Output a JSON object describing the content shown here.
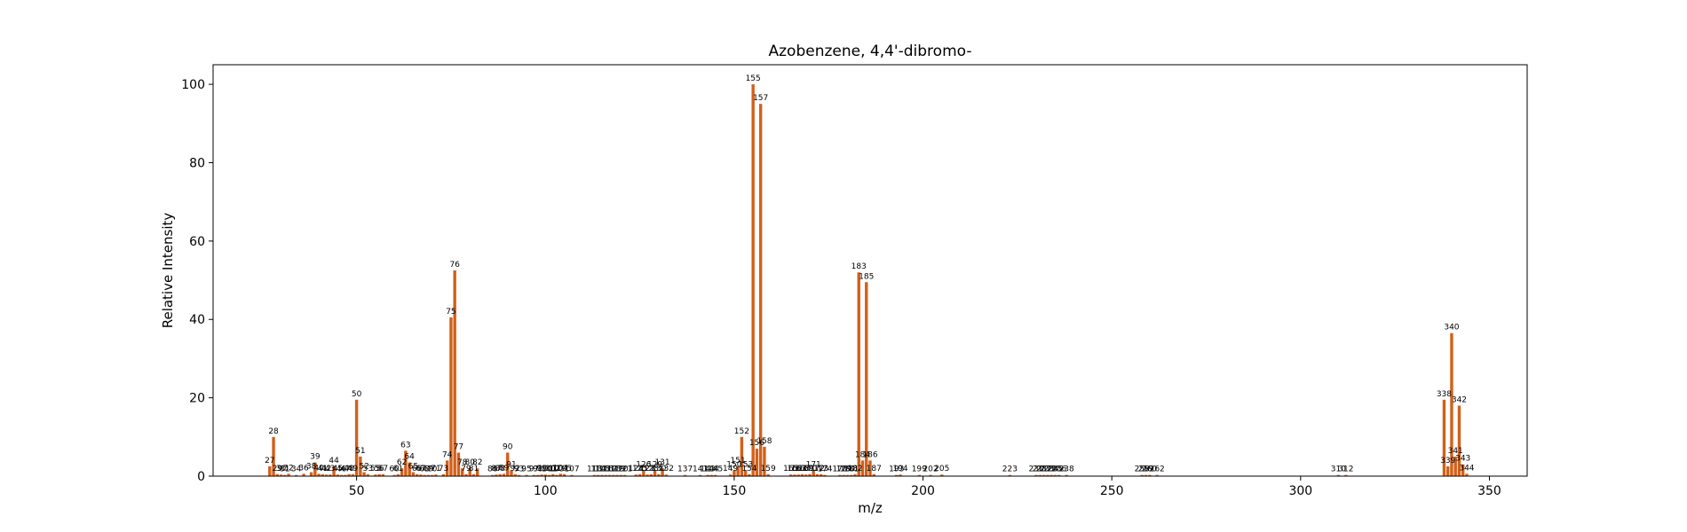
{
  "chart_data": {
    "type": "bar",
    "title": "Azobenzene, 4,4'-dibromo-",
    "xlabel": "m/z",
    "ylabel": "Relative Intensity",
    "xlim": [
      12,
      360
    ],
    "ylim": [
      0,
      105
    ],
    "xticks": [
      50,
      100,
      150,
      200,
      250,
      300,
      350
    ],
    "yticks": [
      0,
      20,
      40,
      60,
      80,
      100
    ],
    "bar_color": "#d2601a",
    "grid": false,
    "points": [
      {
        "x": 27,
        "y": 2.5
      },
      {
        "x": 28,
        "y": 10
      },
      {
        "x": 29,
        "y": 0.5
      },
      {
        "x": 30,
        "y": 0.4
      },
      {
        "x": 31,
        "y": 0.3
      },
      {
        "x": 32,
        "y": 0.6
      },
      {
        "x": 34,
        "y": 0.3
      },
      {
        "x": 36,
        "y": 0.6
      },
      {
        "x": 38,
        "y": 1.0
      },
      {
        "x": 39,
        "y": 3.5
      },
      {
        "x": 40,
        "y": 0.6
      },
      {
        "x": 41,
        "y": 0.5
      },
      {
        "x": 42,
        "y": 0.4
      },
      {
        "x": 43,
        "y": 0.4
      },
      {
        "x": 44,
        "y": 2.5
      },
      {
        "x": 45,
        "y": 0.4
      },
      {
        "x": 46,
        "y": 0.3
      },
      {
        "x": 47,
        "y": 0.3
      },
      {
        "x": 48,
        "y": 0.5
      },
      {
        "x": 49,
        "y": 0.5
      },
      {
        "x": 50,
        "y": 19.5
      },
      {
        "x": 51,
        "y": 5
      },
      {
        "x": 52,
        "y": 1.0
      },
      {
        "x": 53,
        "y": 0.5
      },
      {
        "x": 55,
        "y": 0.4
      },
      {
        "x": 56,
        "y": 0.5
      },
      {
        "x": 57,
        "y": 0.5
      },
      {
        "x": 60,
        "y": 0.3
      },
      {
        "x": 61,
        "y": 0.5
      },
      {
        "x": 62,
        "y": 2
      },
      {
        "x": 63,
        "y": 6.5
      },
      {
        "x": 64,
        "y": 3.5
      },
      {
        "x": 65,
        "y": 1.0
      },
      {
        "x": 66,
        "y": 0.5
      },
      {
        "x": 67,
        "y": 0.4
      },
      {
        "x": 68,
        "y": 0.3
      },
      {
        "x": 69,
        "y": 0.3
      },
      {
        "x": 70,
        "y": 0.3
      },
      {
        "x": 71,
        "y": 0.4
      },
      {
        "x": 73,
        "y": 0.5
      },
      {
        "x": 74,
        "y": 4
      },
      {
        "x": 75,
        "y": 40.5
      },
      {
        "x": 76,
        "y": 52.5
      },
      {
        "x": 77,
        "y": 6
      },
      {
        "x": 78,
        "y": 2
      },
      {
        "x": 79,
        "y": 0.5
      },
      {
        "x": 80,
        "y": 2
      },
      {
        "x": 81,
        "y": 0.5
      },
      {
        "x": 82,
        "y": 2
      },
      {
        "x": 86,
        "y": 0.3
      },
      {
        "x": 87,
        "y": 0.4
      },
      {
        "x": 88,
        "y": 0.5
      },
      {
        "x": 89,
        "y": 0.6
      },
      {
        "x": 90,
        "y": 6
      },
      {
        "x": 91,
        "y": 1.5
      },
      {
        "x": 92,
        "y": 0.5
      },
      {
        "x": 93,
        "y": 0.3
      },
      {
        "x": 95,
        "y": 0.3
      },
      {
        "x": 97,
        "y": 0.3
      },
      {
        "x": 98,
        "y": 0.3
      },
      {
        "x": 99,
        "y": 0.4
      },
      {
        "x": 100,
        "y": 0.4
      },
      {
        "x": 101,
        "y": 0.3
      },
      {
        "x": 102,
        "y": 0.5
      },
      {
        "x": 103,
        "y": 0.3
      },
      {
        "x": 104,
        "y": 0.6
      },
      {
        "x": 105,
        "y": 0.5
      },
      {
        "x": 107,
        "y": 0.3
      },
      {
        "x": 113,
        "y": 0.3
      },
      {
        "x": 114,
        "y": 0.3
      },
      {
        "x": 115,
        "y": 0.3
      },
      {
        "x": 116,
        "y": 0.3
      },
      {
        "x": 117,
        "y": 0.3
      },
      {
        "x": 118,
        "y": 0.3
      },
      {
        "x": 119,
        "y": 0.3
      },
      {
        "x": 120,
        "y": 0.3
      },
      {
        "x": 121,
        "y": 0.3
      },
      {
        "x": 124,
        "y": 0.4
      },
      {
        "x": 125,
        "y": 0.5
      },
      {
        "x": 126,
        "y": 1.5
      },
      {
        "x": 127,
        "y": 0.4
      },
      {
        "x": 128,
        "y": 0.5
      },
      {
        "x": 129,
        "y": 1.5
      },
      {
        "x": 130,
        "y": 0.5
      },
      {
        "x": 131,
        "y": 2
      },
      {
        "x": 132,
        "y": 0.4
      },
      {
        "x": 137,
        "y": 0.3
      },
      {
        "x": 141,
        "y": 0.3
      },
      {
        "x": 143,
        "y": 0.3
      },
      {
        "x": 144,
        "y": 0.3
      },
      {
        "x": 145,
        "y": 0.3
      },
      {
        "x": 149,
        "y": 0.4
      },
      {
        "x": 150,
        "y": 1.5
      },
      {
        "x": 151,
        "y": 2.5
      },
      {
        "x": 152,
        "y": 10
      },
      {
        "x": 153,
        "y": 1.5
      },
      {
        "x": 154,
        "y": 0.5
      },
      {
        "x": 155,
        "y": 100
      },
      {
        "x": 156,
        "y": 7
      },
      {
        "x": 157,
        "y": 95
      },
      {
        "x": 158,
        "y": 7.5
      },
      {
        "x": 159,
        "y": 0.5
      },
      {
        "x": 165,
        "y": 0.4
      },
      {
        "x": 166,
        "y": 0.4
      },
      {
        "x": 167,
        "y": 0.4
      },
      {
        "x": 168,
        "y": 0.5
      },
      {
        "x": 169,
        "y": 0.4
      },
      {
        "x": 170,
        "y": 0.5
      },
      {
        "x": 171,
        "y": 1.5
      },
      {
        "x": 172,
        "y": 0.5
      },
      {
        "x": 173,
        "y": 0.5
      },
      {
        "x": 174,
        "y": 0.3
      },
      {
        "x": 178,
        "y": 0.3
      },
      {
        "x": 179,
        "y": 0.3
      },
      {
        "x": 180,
        "y": 0.3
      },
      {
        "x": 181,
        "y": 0.3
      },
      {
        "x": 182,
        "y": 0.5
      },
      {
        "x": 183,
        "y": 52
      },
      {
        "x": 184,
        "y": 4
      },
      {
        "x": 185,
        "y": 49.5
      },
      {
        "x": 186,
        "y": 4
      },
      {
        "x": 187,
        "y": 0.5
      },
      {
        "x": 193,
        "y": 0.3
      },
      {
        "x": 194,
        "y": 0.4
      },
      {
        "x": 199,
        "y": 0.3
      },
      {
        "x": 202,
        "y": 0.3
      },
      {
        "x": 205,
        "y": 0.4
      },
      {
        "x": 223,
        "y": 0.3
      },
      {
        "x": 230,
        "y": 0.3
      },
      {
        "x": 231,
        "y": 0.3
      },
      {
        "x": 232,
        "y": 0.3
      },
      {
        "x": 233,
        "y": 0.3
      },
      {
        "x": 234,
        "y": 0.3
      },
      {
        "x": 235,
        "y": 0.3
      },
      {
        "x": 236,
        "y": 0.3
      },
      {
        "x": 238,
        "y": 0.3
      },
      {
        "x": 258,
        "y": 0.3
      },
      {
        "x": 259,
        "y": 0.3
      },
      {
        "x": 260,
        "y": 0.3
      },
      {
        "x": 262,
        "y": 0.3
      },
      {
        "x": 310,
        "y": 0.3
      },
      {
        "x": 312,
        "y": 0.3
      },
      {
        "x": 338,
        "y": 19.5
      },
      {
        "x": 339,
        "y": 2.5
      },
      {
        "x": 340,
        "y": 36.5
      },
      {
        "x": 341,
        "y": 5
      },
      {
        "x": 342,
        "y": 18
      },
      {
        "x": 343,
        "y": 3
      },
      {
        "x": 344,
        "y": 0.6
      }
    ]
  }
}
